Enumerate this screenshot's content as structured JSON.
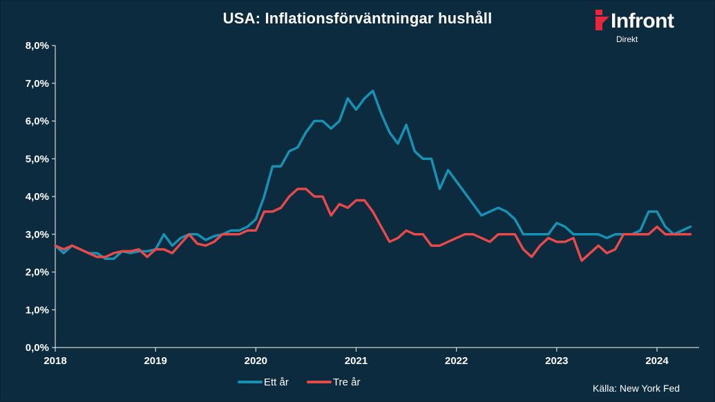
{
  "title": "USA: Inflationsförväntningar hushåll",
  "logo": {
    "word": "Infront",
    "sub": "Direkt",
    "mark_color": "#e8273c"
  },
  "source": "Källa:  New York Fed",
  "colors": {
    "background": "#0d2b3e",
    "series_1": "#1592b4",
    "series_2": "#e8494b",
    "axis": "#ffffff"
  },
  "chart_data": {
    "type": "line",
    "title": "USA: Inflationsförväntningar hushåll",
    "xlim": [
      2018.0,
      2024.42
    ],
    "ylim": [
      0,
      8
    ],
    "y_ticks": [
      "0,0%",
      "1,0%",
      "2,0%",
      "3,0%",
      "4,0%",
      "5,0%",
      "6,0%",
      "7,0%",
      "8,0%"
    ],
    "y_tick_values": [
      0,
      1,
      2,
      3,
      4,
      5,
      6,
      7,
      8
    ],
    "x_ticks": [
      "2018",
      "2019",
      "2020",
      "2021",
      "2022",
      "2023",
      "2024"
    ],
    "x_tick_values": [
      2018,
      2019,
      2020,
      2021,
      2022,
      2023,
      2024
    ],
    "legend_position": "bottom",
    "x_frequency": "monthly",
    "x_start": "2018-01",
    "series": [
      {
        "name": "Ett år",
        "values": [
          2.7,
          2.5,
          2.7,
          2.6,
          2.5,
          2.5,
          2.35,
          2.35,
          2.55,
          2.5,
          2.55,
          2.55,
          2.6,
          3.0,
          2.7,
          2.9,
          3.0,
          3.0,
          2.85,
          2.95,
          3.0,
          3.1,
          3.1,
          3.2,
          3.4,
          4.0,
          4.8,
          4.8,
          5.2,
          5.3,
          5.7,
          6.0,
          6.0,
          5.8,
          6.0,
          6.6,
          6.3,
          6.6,
          6.8,
          6.2,
          5.7,
          5.4,
          5.9,
          5.2,
          5.0,
          5.0,
          4.2,
          4.7,
          4.4,
          4.1,
          3.8,
          3.5,
          3.6,
          3.7,
          3.6,
          3.4,
          3.0,
          3.0,
          3.0,
          3.0,
          3.3,
          3.2,
          3.0,
          3.0,
          3.0,
          3.0,
          2.9,
          3.0,
          3.0,
          3.0,
          3.1,
          3.6,
          3.6,
          3.2,
          3.0,
          3.1,
          3.2
        ]
      },
      {
        "name": "Tre år",
        "values": [
          2.7,
          2.6,
          2.7,
          2.6,
          2.5,
          2.4,
          2.4,
          2.5,
          2.55,
          2.55,
          2.6,
          2.4,
          2.6,
          2.6,
          2.5,
          2.75,
          3.0,
          2.75,
          2.7,
          2.8,
          3.0,
          3.0,
          3.0,
          3.1,
          3.1,
          3.6,
          3.6,
          3.7,
          4.0,
          4.2,
          4.2,
          4.0,
          4.0,
          3.5,
          3.8,
          3.7,
          3.9,
          3.9,
          3.6,
          3.2,
          2.8,
          2.9,
          3.1,
          3.0,
          3.0,
          2.7,
          2.7,
          2.8,
          2.9,
          3.0,
          3.0,
          2.9,
          2.8,
          3.0,
          3.0,
          3.0,
          2.6,
          2.4,
          2.7,
          2.9,
          2.8,
          2.8,
          2.9,
          2.3,
          2.5,
          2.7,
          2.5,
          2.6,
          3.0,
          3.0,
          3.0,
          3.0,
          3.2,
          3.0,
          3.0,
          3.0,
          3.0
        ]
      }
    ]
  }
}
